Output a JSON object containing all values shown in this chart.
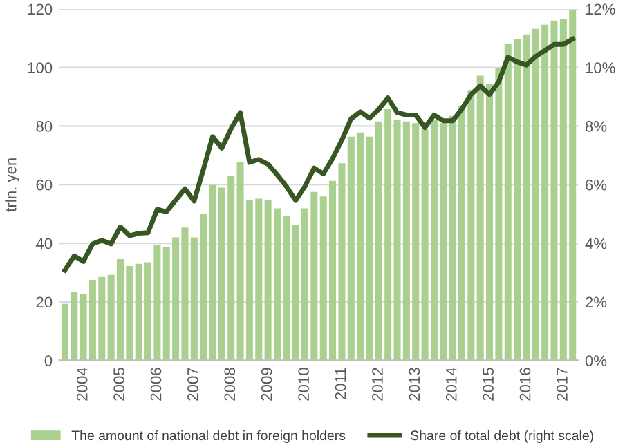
{
  "chart_data": {
    "type": "bar",
    "ylabel": "trln. yen",
    "categories": [
      null,
      null,
      "2004",
      null,
      null,
      null,
      "2005",
      null,
      null,
      null,
      "2006",
      null,
      null,
      null,
      "2007",
      null,
      null,
      null,
      "2008",
      null,
      null,
      null,
      "2009",
      null,
      null,
      null,
      "2010",
      null,
      null,
      null,
      "2011",
      null,
      null,
      null,
      "2012",
      null,
      null,
      null,
      "2013",
      null,
      null,
      null,
      "2014",
      null,
      null,
      null,
      "2015",
      null,
      null,
      null,
      "2016",
      null,
      null,
      null,
      "2017",
      null
    ],
    "series": [
      {
        "name": "The amount of national debt in foreign holders",
        "color": "#a9d08e",
        "values": [
          19.3,
          23.3,
          22.8,
          27.5,
          28.5,
          29.2,
          34.6,
          32.2,
          33.0,
          33.5,
          39.3,
          38.7,
          42.0,
          45.4,
          42.0,
          50.0,
          59.9,
          59.0,
          62.9,
          67.6,
          54.7,
          55.2,
          54.7,
          51.9,
          49.2,
          46.4,
          51.9,
          57.5,
          56.0,
          61.3,
          67.3,
          76.4,
          77.8,
          76.4,
          81.6,
          85.8,
          82.1,
          81.6,
          81.0,
          78.8,
          82.0,
          81.0,
          83.5,
          87.0,
          92.3,
          97.2,
          94.4,
          99.8,
          108.0,
          109.7,
          111.3,
          113.2,
          114.6,
          116.0,
          116.5,
          119.5
        ]
      },
      {
        "name": "Share of total debt (right scale)",
        "type": "line",
        "axis": "y2",
        "color": "#375623",
        "values": [
          3.08,
          3.57,
          3.38,
          3.98,
          4.1,
          3.98,
          4.56,
          4.26,
          4.34,
          4.36,
          5.16,
          5.08,
          5.47,
          5.86,
          5.44,
          6.52,
          7.64,
          7.25,
          7.91,
          8.46,
          6.76,
          6.86,
          6.7,
          6.34,
          5.94,
          5.46,
          5.94,
          6.57,
          6.37,
          6.89,
          7.52,
          8.25,
          8.49,
          8.27,
          8.57,
          8.96,
          8.46,
          8.38,
          8.38,
          7.95,
          8.38,
          8.18,
          8.18,
          8.58,
          9.08,
          9.37,
          9.08,
          9.51,
          10.35,
          10.19,
          10.08,
          10.38,
          10.58,
          10.79,
          10.79,
          10.97
        ]
      }
    ],
    "ylim": [
      0,
      120
    ],
    "yticks": [
      0,
      20,
      40,
      60,
      80,
      100,
      120
    ],
    "y2lim": [
      0,
      12
    ],
    "y2ticks": [
      {
        "value": 0,
        "label": "0%"
      },
      {
        "value": 2,
        "label": "2%"
      },
      {
        "value": 4,
        "label": "4%"
      },
      {
        "value": 6,
        "label": "6%"
      },
      {
        "value": 8,
        "label": "8%"
      },
      {
        "value": 10,
        "label": "10%"
      },
      {
        "value": 12,
        "label": "12%"
      }
    ],
    "grid": "y",
    "legend": "bottom",
    "line_style": "solid",
    "marker": "none"
  }
}
